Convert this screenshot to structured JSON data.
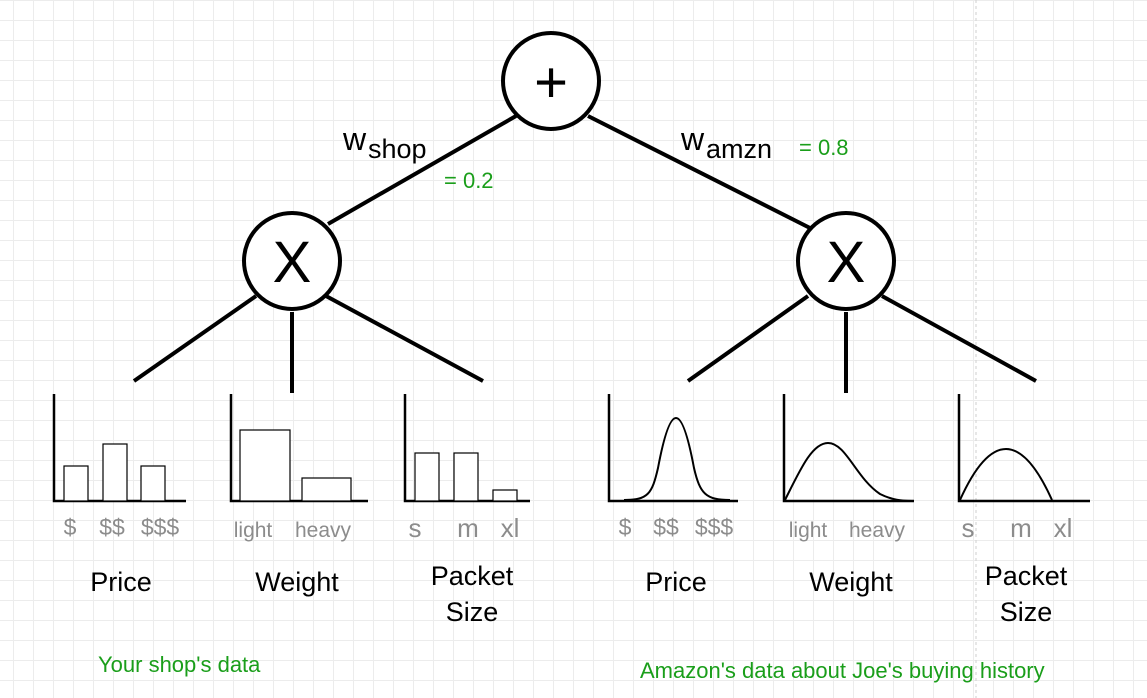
{
  "root": {
    "symbol": "+"
  },
  "left_branch": {
    "weight": {
      "symbol": "w",
      "subscript": "shop",
      "value": "= 0.2"
    },
    "product": {
      "symbol": "X"
    },
    "features": [
      {
        "title_lines": [
          "Price"
        ],
        "ticks": [
          "$",
          "$$",
          "$$$"
        ],
        "dist": "histogram",
        "bars": [
          0.43,
          0.7,
          0.43
        ]
      },
      {
        "title_lines": [
          "Weight"
        ],
        "ticks": [
          "light",
          "heavy"
        ],
        "dist": "histogram",
        "bars": [
          0.86,
          0.28
        ]
      },
      {
        "title_lines": [
          "Packet",
          "Size"
        ],
        "ticks": [
          "s",
          "m",
          "xl"
        ],
        "dist": "histogram",
        "bars": [
          0.58,
          0.58,
          0.14
        ]
      }
    ],
    "caption": "Your shop's data"
  },
  "right_branch": {
    "weight": {
      "symbol": "w",
      "subscript": "amzn",
      "value": "= 0.8"
    },
    "product": {
      "symbol": "X"
    },
    "features": [
      {
        "title_lines": [
          "Price"
        ],
        "ticks": [
          "$",
          "$$",
          "$$$"
        ],
        "dist": "gaussian"
      },
      {
        "title_lines": [
          "Weight"
        ],
        "ticks": [
          "light",
          "heavy"
        ],
        "dist": "skewed"
      },
      {
        "title_lines": [
          "Packet",
          "Size"
        ],
        "ticks": [
          "s",
          "m",
          "xl"
        ],
        "dist": "arc"
      }
    ],
    "caption": "Amazon's data about Joe's buying history"
  }
}
